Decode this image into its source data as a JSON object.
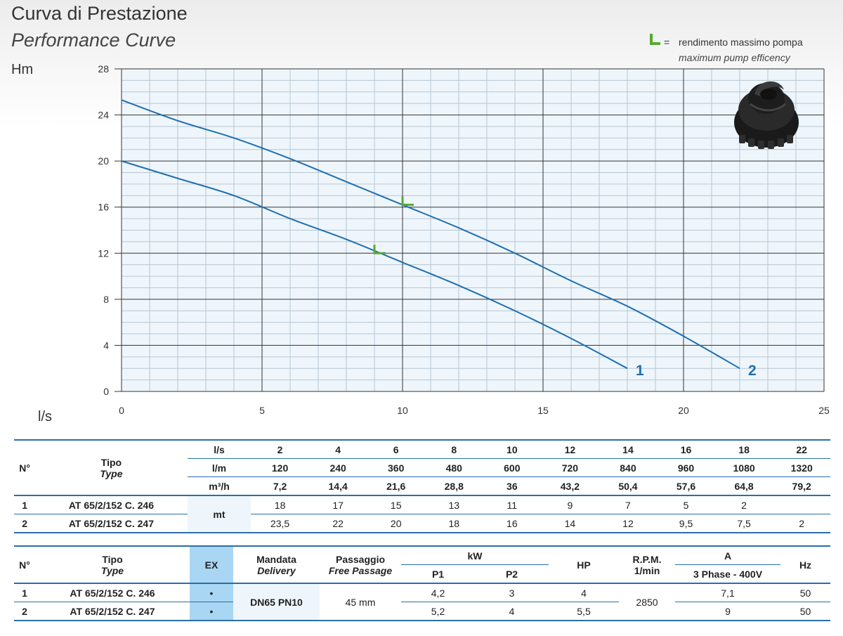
{
  "header": {
    "title": "Curva di Prestazione",
    "subtitle": "Performance Curve",
    "legend_symbol_label": "=",
    "legend_text_it": "rendimento massimo pompa",
    "legend_text_en": "maximum pump efficency",
    "legend_color": "#5aa832"
  },
  "chart_data": {
    "type": "line",
    "ylabel": "Hm",
    "xlabel": "l/s",
    "xlim": [
      0,
      25
    ],
    "ylim": [
      0,
      28
    ],
    "xticks": [
      0,
      5,
      10,
      15,
      20,
      25
    ],
    "yticks": [
      0,
      4,
      8,
      12,
      16,
      20,
      24,
      28
    ],
    "grid": true,
    "line_color": "#1f6fb0",
    "plot_background": "#eef6fc",
    "series": [
      {
        "name": "1",
        "x": [
          0,
          2,
          4,
          6,
          8,
          10,
          12,
          14,
          16,
          18
        ],
        "y": [
          20,
          18.5,
          17,
          15,
          13.2,
          11.2,
          9.2,
          7,
          4.6,
          2
        ]
      },
      {
        "name": "2",
        "x": [
          0,
          2,
          4,
          6,
          8,
          10,
          12,
          14,
          16,
          18,
          20,
          22
        ],
        "y": [
          25.3,
          23.5,
          22,
          20.2,
          18.2,
          16.2,
          14.2,
          12,
          9.6,
          7.4,
          4.8,
          2
        ]
      }
    ],
    "max_efficiency_points": [
      {
        "series": "1",
        "x": 9,
        "y": 12
      },
      {
        "series": "2",
        "x": 10,
        "y": 16.2
      }
    ]
  },
  "performance_table": {
    "col_no": "N°",
    "col_type_it": "Tipo",
    "col_type_en": "Type",
    "units": [
      "l/s",
      "l/m",
      "m³/h"
    ],
    "flow_ls": [
      "2",
      "4",
      "6",
      "8",
      "10",
      "12",
      "14",
      "16",
      "18",
      "22"
    ],
    "flow_lm": [
      "120",
      "240",
      "360",
      "480",
      "600",
      "720",
      "840",
      "960",
      "1080",
      "1320"
    ],
    "flow_m3h": [
      "7,2",
      "14,4",
      "21,6",
      "28,8",
      "36",
      "43,2",
      "50,4",
      "57,6",
      "64,8",
      "79,2"
    ],
    "head_unit": "mt",
    "rows": [
      {
        "no": "1",
        "type": "AT 65/2/152 C. 246",
        "values": [
          "18",
          "17",
          "15",
          "13",
          "11",
          "9",
          "7",
          "5",
          "2",
          ""
        ]
      },
      {
        "no": "2",
        "type": "AT 65/2/152 C. 247",
        "values": [
          "23,5",
          "22",
          "20",
          "18",
          "16",
          "14",
          "12",
          "9,5",
          "7,5",
          "2"
        ]
      }
    ]
  },
  "spec_table": {
    "col_no": "N°",
    "col_type_it": "Tipo",
    "col_type_en": "Type",
    "col_ex": "EX",
    "col_delivery_it": "Mandata",
    "col_delivery_en": "Delivery",
    "col_passage_it": "Passaggio",
    "col_passage_en": "Free Passage",
    "col_kw": "kW",
    "col_p1": "P1",
    "col_p2": "P2",
    "col_hp": "HP",
    "col_rpm": "R.P.M.",
    "col_rpm_unit": "1/min",
    "col_a": "A",
    "col_phase": "3 Phase - 400V",
    "col_hz": "Hz",
    "delivery": "DN65 PN10",
    "passage": "45 mm",
    "rpm": "2850",
    "rows": [
      {
        "no": "1",
        "type": "AT 65/2/152 C. 246",
        "ex": "•",
        "p1": "4,2",
        "p2": "3",
        "hp": "4",
        "a": "7,1",
        "hz": "50"
      },
      {
        "no": "2",
        "type": "AT 65/2/152 C. 247",
        "ex": "•",
        "p1": "5,2",
        "p2": "4",
        "hp": "5,5",
        "a": "9",
        "hz": "50"
      }
    ]
  }
}
